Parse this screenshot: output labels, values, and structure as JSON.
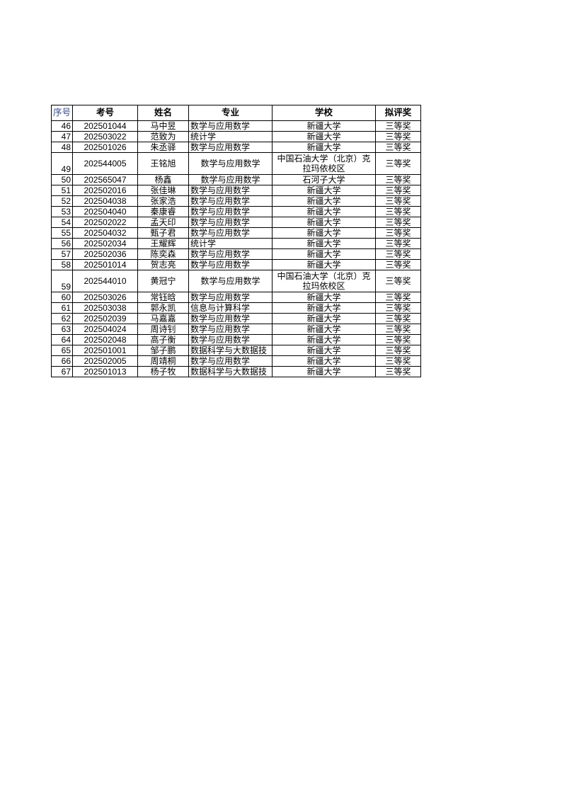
{
  "table": {
    "headers": [
      "序号",
      "考号",
      "姓名",
      "专业",
      "学校",
      "拟评奖"
    ],
    "rows": [
      {
        "seq": "46",
        "id": "202501044",
        "name": "马中昱",
        "major": "数学与应用数学",
        "school": "新疆大学",
        "award": "三等奖"
      },
      {
        "seq": "47",
        "id": "202503022",
        "name": "范致为",
        "major": "统计学",
        "school": "新疆大学",
        "award": "三等奖"
      },
      {
        "seq": "48",
        "id": "202501026",
        "name": "朱丞驿",
        "major": "数学与应用数学",
        "school": "新疆大学",
        "award": "三等奖"
      },
      {
        "seq": "49",
        "id": "202544005",
        "name": "王铭旭",
        "major": "数学与应用数学",
        "school": "中国石油大学（北京）克拉玛依校区",
        "award": "三等奖",
        "tall": true
      },
      {
        "seq": "50",
        "id": "202565047",
        "name": "杨鑫",
        "major": "数学与应用数学",
        "school": "石河子大学",
        "award": "三等奖",
        "center": true
      },
      {
        "seq": "51",
        "id": "202502016",
        "name": "张佳琳",
        "major": "数学与应用数学",
        "school": "新疆大学",
        "award": "三等奖"
      },
      {
        "seq": "52",
        "id": "202504038",
        "name": "张家浩",
        "major": "数学与应用数学",
        "school": "新疆大学",
        "award": "三等奖"
      },
      {
        "seq": "53",
        "id": "202504040",
        "name": "秦康睿",
        "major": "数学与应用数学",
        "school": "新疆大学",
        "award": "三等奖"
      },
      {
        "seq": "54",
        "id": "202502022",
        "name": "孟天印",
        "major": "数学与应用数学",
        "school": "新疆大学",
        "award": "三等奖"
      },
      {
        "seq": "55",
        "id": "202504032",
        "name": "甄子君",
        "major": "数学与应用数学",
        "school": "新疆大学",
        "award": "三等奖"
      },
      {
        "seq": "56",
        "id": "202502034",
        "name": "王耀辉",
        "major": "统计学",
        "school": "新疆大学",
        "award": "三等奖"
      },
      {
        "seq": "57",
        "id": "202502036",
        "name": "陈奕森",
        "major": "数学与应用数学",
        "school": "新疆大学",
        "award": "三等奖"
      },
      {
        "seq": "58",
        "id": "202501014",
        "name": "贺志亮",
        "major": "数学与应用数学",
        "school": "新疆大学",
        "award": "三等奖"
      },
      {
        "seq": "59",
        "id": "202544010",
        "name": "黄冠宁",
        "major": "数学与应用数学",
        "school": "中国石油大学（北京）克拉玛依校区",
        "award": "三等奖",
        "tall": true
      },
      {
        "seq": "60",
        "id": "202503026",
        "name": "常钰晗",
        "major": "数学与应用数学",
        "school": "新疆大学",
        "award": "三等奖"
      },
      {
        "seq": "61",
        "id": "202503038",
        "name": "郭永凯",
        "major": "信息与计算科学",
        "school": "新疆大学",
        "award": "三等奖"
      },
      {
        "seq": "62",
        "id": "202502039",
        "name": "马嘉嘉",
        "major": "数学与应用数学",
        "school": "新疆大学",
        "award": "三等奖"
      },
      {
        "seq": "63",
        "id": "202504024",
        "name": "周诗钊",
        "major": "数学与应用数学",
        "school": "新疆大学",
        "award": "三等奖"
      },
      {
        "seq": "64",
        "id": "202502048",
        "name": "高子衡",
        "major": "数学与应用数学",
        "school": "新疆大学",
        "award": "三等奖"
      },
      {
        "seq": "65",
        "id": "202501001",
        "name": "邹子鹏",
        "major": "数据科学与大数据技",
        "school": "新疆大学",
        "award": "三等奖"
      },
      {
        "seq": "66",
        "id": "202502005",
        "name": "周靖桐",
        "major": "数学与应用数学",
        "school": "新疆大学",
        "award": "三等奖"
      },
      {
        "seq": "67",
        "id": "202501013",
        "name": "杨子牧",
        "major": "数据科学与大数据技",
        "school": "新疆大学",
        "award": "三等奖"
      }
    ]
  }
}
